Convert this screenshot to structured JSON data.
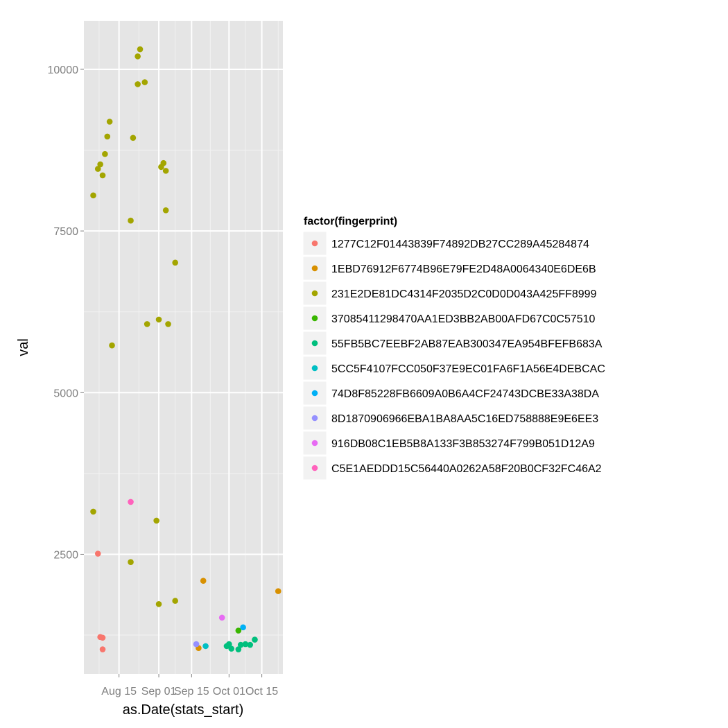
{
  "chart_data": {
    "type": "scatter",
    "xlabel": "as.Date(stats_start)",
    "ylabel": "val",
    "xlim": [
      "2013-07-31",
      "2013-10-24"
    ],
    "ylim": [
      650,
      10750
    ],
    "x_ticks": [
      {
        "date": "2013-08-15",
        "label": "Aug 15"
      },
      {
        "date": "2013-09-01",
        "label": "Sep 01"
      },
      {
        "date": "2013-09-15",
        "label": "Sep 15"
      },
      {
        "date": "2013-10-01",
        "label": "Oct 01"
      },
      {
        "date": "2013-10-15",
        "label": "Oct 15"
      }
    ],
    "y_ticks": [
      2500,
      5000,
      7500,
      10000
    ],
    "grid": true,
    "legend": {
      "title": "factor(fingerprint)",
      "position": "right"
    },
    "series": [
      {
        "name": "1277C12F01443839F74892DB27CC289A45284874",
        "color": "#F8766D",
        "points": [
          [
            "2013-08-06",
            2510
          ],
          [
            "2013-08-07",
            1220
          ],
          [
            "2013-08-08",
            1210
          ],
          [
            "2013-08-08",
            1030
          ]
        ]
      },
      {
        "name": "1EBD76912F6774B96E79FE2D48A0064340E6DE6B",
        "color": "#D89000",
        "points": [
          [
            "2013-09-18",
            1050
          ],
          [
            "2013-09-20",
            2090
          ],
          [
            "2013-10-22",
            1930
          ]
        ]
      },
      {
        "name": "231E2DE81DC4314F2035D2C0D0D043A425FF8999",
        "color": "#A3A500",
        "points": [
          [
            "2013-08-04",
            3160
          ],
          [
            "2013-08-04",
            8050
          ],
          [
            "2013-08-06",
            8460
          ],
          [
            "2013-08-07",
            8530
          ],
          [
            "2013-08-08",
            8360
          ],
          [
            "2013-08-09",
            8690
          ],
          [
            "2013-08-10",
            8960
          ],
          [
            "2013-08-11",
            9190
          ],
          [
            "2013-08-12",
            5730
          ],
          [
            "2013-08-20",
            2380
          ],
          [
            "2013-08-20",
            7660
          ],
          [
            "2013-08-21",
            8940
          ],
          [
            "2013-08-23",
            9770
          ],
          [
            "2013-08-23",
            10200
          ],
          [
            "2013-08-24",
            10310
          ],
          [
            "2013-08-26",
            9800
          ],
          [
            "2013-08-27",
            6060
          ],
          [
            "2013-08-31",
            3020
          ],
          [
            "2013-09-01",
            6130
          ],
          [
            "2013-09-01",
            1730
          ],
          [
            "2013-09-02",
            8490
          ],
          [
            "2013-09-03",
            8550
          ],
          [
            "2013-09-04",
            8430
          ],
          [
            "2013-09-04",
            7820
          ],
          [
            "2013-09-05",
            6060
          ],
          [
            "2013-09-08",
            1780
          ],
          [
            "2013-09-08",
            7010
          ]
        ]
      },
      {
        "name": "37085411298470AA1ED3BB2AB00AFD67C0C57510",
        "color": "#39B600",
        "points": [
          [
            "2013-10-05",
            1320
          ]
        ]
      },
      {
        "name": "55FB5BC7EEBF2AB87EAB300347EA954BFEFB683A",
        "color": "#00BF7D",
        "points": [
          [
            "2013-09-30",
            1080
          ],
          [
            "2013-10-01",
            1110
          ],
          [
            "2013-10-02",
            1040
          ],
          [
            "2013-10-05",
            1030
          ],
          [
            "2013-10-06",
            1100
          ],
          [
            "2013-10-08",
            1110
          ],
          [
            "2013-10-10",
            1100
          ],
          [
            "2013-10-12",
            1180
          ]
        ]
      },
      {
        "name": "5CC5F4107FCC050F37E9EC01FA6F1A56E4DEBCAC",
        "color": "#00BFC4",
        "points": [
          [
            "2013-09-21",
            1080
          ]
        ]
      },
      {
        "name": "74D8F85228FB6609A0B6A4CF24743DCBE33A38DA",
        "color": "#00B0F6",
        "points": [
          [
            "2013-10-07",
            1370
          ]
        ]
      },
      {
        "name": "8D1870906966EBA1BA8AA5C16ED758888E9E6EE3",
        "color": "#9590FF",
        "points": [
          [
            "2013-09-17",
            1110
          ]
        ]
      },
      {
        "name": "916DB08C1EB5B8A133F3B853274F799B051D12A9",
        "color": "#E76BF3",
        "points": [
          [
            "2013-09-28",
            1520
          ]
        ]
      },
      {
        "name": "C5E1AEDDD15C56440A0262A58F20B0CF32FC46A2",
        "color": "#FF62BC",
        "points": [
          [
            "2013-08-20",
            3310
          ]
        ]
      }
    ]
  }
}
